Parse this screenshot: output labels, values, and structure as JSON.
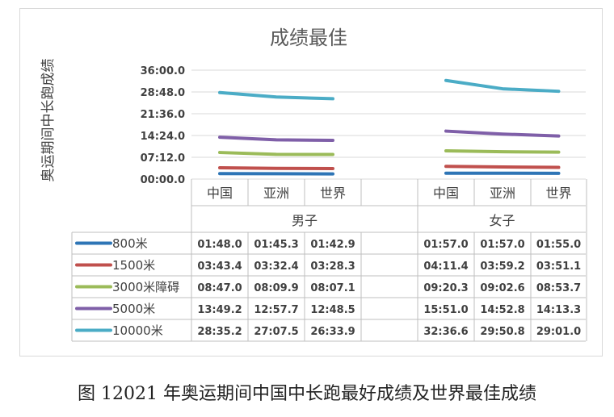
{
  "chart_data": {
    "type": "line",
    "title": "成绩最佳",
    "ylabel": "奥运期间中长跑成绩",
    "y_ticks": [
      "00:00.0",
      "07:12.0",
      "14:24.0",
      "21:36.0",
      "28:48.0",
      "36:00.0"
    ],
    "ylim_seconds": [
      0,
      2160
    ],
    "groups": [
      {
        "name": "男子",
        "categories": [
          "中国",
          "亚洲",
          "世界"
        ]
      },
      {
        "name": "女子",
        "categories": [
          "中国",
          "亚洲",
          "世界"
        ]
      }
    ],
    "legend_position": "table-left",
    "series": [
      {
        "name": "800米",
        "color": "#2e75b6",
        "values": [
          "01:48.0",
          "01:45.3",
          "01:42.9",
          "",
          "01:57.0",
          "01:57.0",
          "01:55.0"
        ]
      },
      {
        "name": "1500米",
        "color": "#c0504d",
        "values": [
          "03:43.4",
          "03:32.4",
          "03:28.3",
          "",
          "04:11.4",
          "03:59.2",
          "03:51.1"
        ]
      },
      {
        "name": "3000米障碍",
        "color": "#9bbb59",
        "values": [
          "08:47.0",
          "08:09.9",
          "08:07.1",
          "",
          "09:20.3",
          "09:02.6",
          "08:53.7"
        ]
      },
      {
        "name": "5000米",
        "color": "#7f5fa8",
        "values": [
          "13:49.2",
          "12:57.7",
          "12:48.5",
          "",
          "15:51.0",
          "14:52.8",
          "14:13.3"
        ]
      },
      {
        "name": "10000米",
        "color": "#4bacc6",
        "values": [
          "28:35.2",
          "27:07.5",
          "26:33.9",
          "",
          "32:36.6",
          "29:50.8",
          "29:01.0"
        ]
      }
    ]
  },
  "caption": "图 12021 年奥运期间中国中长跑最好成绩及世界最佳成绩"
}
